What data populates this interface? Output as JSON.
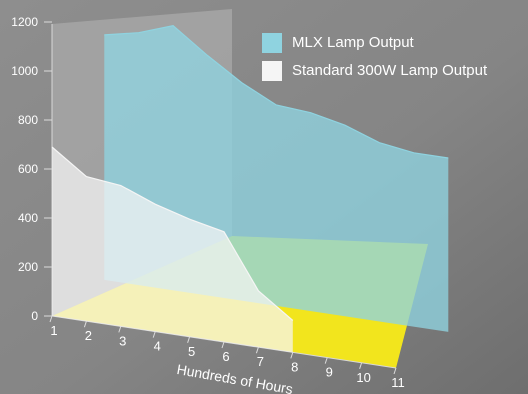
{
  "chart_data": {
    "type": "area",
    "xlabel": "Hundreds of Hours",
    "ylabel": "",
    "x": [
      1,
      2,
      3,
      4,
      5,
      6,
      7,
      8,
      9,
      10,
      11
    ],
    "x_tick_labels": [
      "1",
      "2",
      "3",
      "4",
      "5",
      "6",
      "7",
      "8",
      "9",
      "10",
      "11"
    ],
    "y_tick_labels": [
      "0",
      "200",
      "400",
      "600",
      "800",
      "1000",
      "1200"
    ],
    "ylim": [
      0,
      1200
    ],
    "legend_position": "top-right",
    "series": [
      {
        "name": "MLX Lamp Output",
        "color": "#8fd3e0",
        "values": [
          1000,
          1030,
          1080,
          980,
          890,
          820,
          810,
          780,
          730,
          710,
          710
        ]
      },
      {
        "name": "Standard 300W Lamp Output",
        "color": "#f5f5f5",
        "values": [
          690,
          590,
          575,
          520,
          480,
          450,
          230,
          130,
          null,
          null,
          null
        ]
      }
    ],
    "floor_color": "#f2e51d",
    "wall_color": "#aaaaaa"
  }
}
